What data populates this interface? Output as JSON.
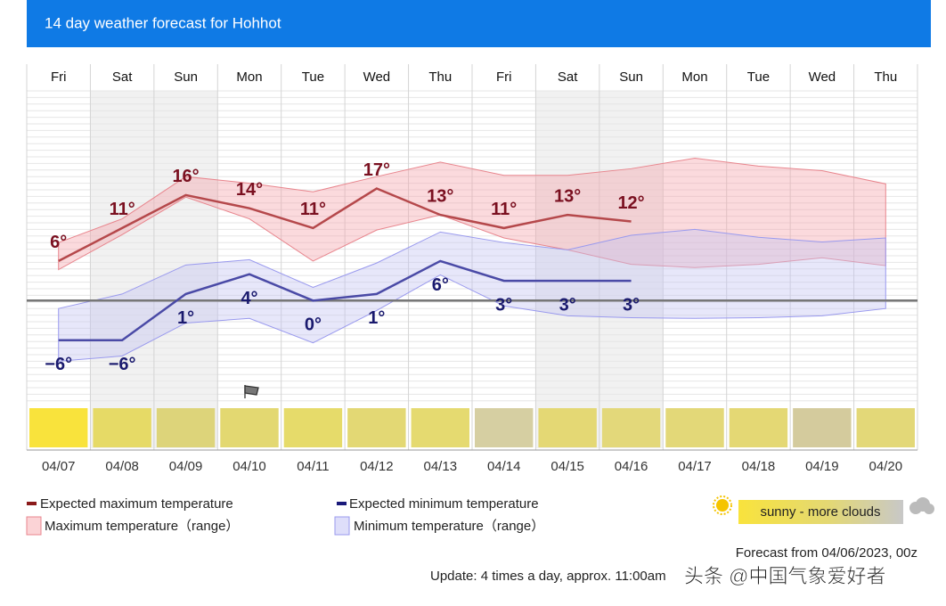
{
  "chart_data": {
    "type": "line",
    "title": "14 day weather forecast for Hohhot",
    "weekdays": [
      "Fri",
      "Sat",
      "Sun",
      "Mon",
      "Tue",
      "Wed",
      "Thu",
      "Fri",
      "Sat",
      "Sun",
      "Mon",
      "Tue",
      "Wed",
      "Thu"
    ],
    "categories": [
      "04/07",
      "04/08",
      "04/09",
      "04/10",
      "04/11",
      "04/12",
      "04/13",
      "04/14",
      "04/15",
      "04/16",
      "04/17",
      "04/18",
      "04/19",
      "04/20"
    ],
    "ylim": [
      -15.5,
      31.8
    ],
    "series": [
      {
        "name": "Expected maximum temperature",
        "color": "#b5484b",
        "label_color": "#7a1020",
        "values": [
          6,
          11,
          16,
          14,
          11,
          17,
          13,
          11,
          13,
          12,
          null,
          null,
          null,
          null
        ],
        "value_labels": [
          "6°",
          "11°",
          "16°",
          "14°",
          "11°",
          "17°",
          "13°",
          "11°",
          "13°",
          "12°",
          null,
          null,
          null,
          null
        ]
      },
      {
        "name": "Expected minimum temperature",
        "color": "#4a4aa6",
        "label_color": "#1a1a6e",
        "values": [
          -6,
          -6,
          1,
          4,
          0,
          1,
          6,
          3,
          3,
          3,
          null,
          null,
          null,
          null
        ],
        "value_labels": [
          "−6°",
          "−6°",
          "1°",
          "4°",
          "0°",
          "1°",
          "6°",
          "3°",
          "3°",
          "3°",
          null,
          null,
          null,
          null
        ]
      }
    ],
    "ranges": [
      {
        "name": "Maximum temperature（range）",
        "color": "#f4a3aa",
        "stroke": "#e8858d",
        "upper": [
          8.8,
          12.4,
          18.8,
          17.8,
          16.5,
          18.8,
          21,
          19,
          19,
          20,
          21.6,
          20.4,
          19.7,
          17.7
        ],
        "lower": [
          4.7,
          10,
          15.7,
          12.4,
          6,
          10.7,
          13,
          9.5,
          7.7,
          5.5,
          5,
          5.5,
          6.5,
          5.3
        ]
      },
      {
        "name": "Minimum temperature（range）",
        "color": "#c3c3f3",
        "stroke": "#9999ee",
        "upper": [
          -1.2,
          1,
          5.4,
          6.2,
          2,
          5.7,
          10.4,
          8.8,
          7.7,
          9.9,
          10.8,
          9.6,
          8.9,
          9.5
        ],
        "lower": [
          -9.2,
          -8.4,
          -3.4,
          -2.7,
          -6.4,
          -1.5,
          3.9,
          -0.8,
          -2.3,
          -2.6,
          -2.7,
          -2.6,
          -2.3,
          -1.2
        ]
      }
    ],
    "sky_colors": [
      "#f9e33c",
      "#e6da66",
      "#ddd47a",
      "#e3d871",
      "#e6db6a",
      "#e3d874",
      "#e5da70",
      "#d6cfa2",
      "#e4d874",
      "#e3d87a",
      "#e3d878",
      "#e4d874",
      "#d4cb9d",
      "#e3d878"
    ],
    "sky_legend": "sunny - more clouds",
    "forecast_from": "Forecast from 04/06/2023, 00z",
    "update": "Update: 4 times a day, approx. 11:00am",
    "watermark": "头条 @中国气象爱好者"
  }
}
